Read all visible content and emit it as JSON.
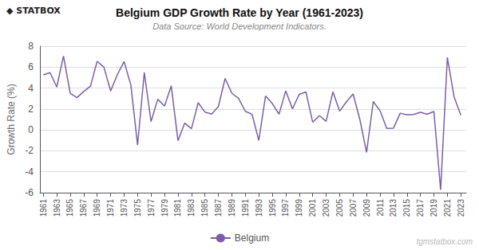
{
  "chart_data": {
    "type": "line",
    "title": "Belgium GDP Growth Rate by Year (1961-2023)",
    "subtitle": "Data Source: World Development Indicators.",
    "ylabel": "Growth Rate (%)",
    "annotations": [
      "◆ STATBOX",
      "tgmstatbox.com"
    ],
    "x": [
      1961,
      1962,
      1963,
      1964,
      1965,
      1966,
      1967,
      1968,
      1969,
      1970,
      1971,
      1972,
      1973,
      1974,
      1975,
      1976,
      1977,
      1978,
      1979,
      1980,
      1981,
      1982,
      1983,
      1984,
      1985,
      1986,
      1987,
      1988,
      1989,
      1990,
      1991,
      1992,
      1993,
      1994,
      1995,
      1996,
      1997,
      1998,
      1999,
      2000,
      2001,
      2002,
      2003,
      2004,
      2005,
      2006,
      2007,
      2008,
      2009,
      2010,
      2011,
      2012,
      2013,
      2014,
      2015,
      2016,
      2017,
      2018,
      2019,
      2020,
      2021,
      2022,
      2023
    ],
    "series": [
      {
        "name": "Belgium",
        "color": "#7B5EA7",
        "values": [
          5.26,
          5.47,
          4.1,
          7.06,
          3.51,
          3.08,
          3.67,
          4.17,
          6.55,
          5.99,
          3.72,
          5.28,
          6.52,
          4.3,
          -1.45,
          5.49,
          0.79,
          2.93,
          2.28,
          4.21,
          -1.03,
          0.65,
          0.12,
          2.6,
          1.71,
          1.51,
          2.24,
          4.92,
          3.51,
          3.01,
          1.78,
          1.49,
          -1.01,
          3.24,
          2.52,
          1.5,
          3.73,
          2.01,
          3.4,
          3.62,
          0.74,
          1.36,
          0.82,
          3.64,
          1.79,
          2.67,
          3.43,
          1.02,
          -2.15,
          2.71,
          1.83,
          0.14,
          0.17,
          1.6,
          1.43,
          1.48,
          1.69,
          1.49,
          1.76,
          -5.73,
          6.93,
          3.15,
          1.4
        ]
      }
    ],
    "xlim": [
      1960.5,
      2023.8
    ],
    "xticks": [
      1961,
      1963,
      1965,
      1967,
      1969,
      1971,
      1973,
      1975,
      1977,
      1979,
      1981,
      1983,
      1985,
      1987,
      1989,
      1991,
      1993,
      1995,
      1997,
      1999,
      2001,
      2003,
      2005,
      2007,
      2009,
      2011,
      2013,
      2015,
      2017,
      2019,
      2021,
      2023
    ],
    "ylim": [
      -6,
      8
    ],
    "yticks": [
      -6,
      -4,
      -2,
      0,
      2,
      4,
      6,
      8
    ],
    "grid": "y",
    "legend": "bottom"
  }
}
